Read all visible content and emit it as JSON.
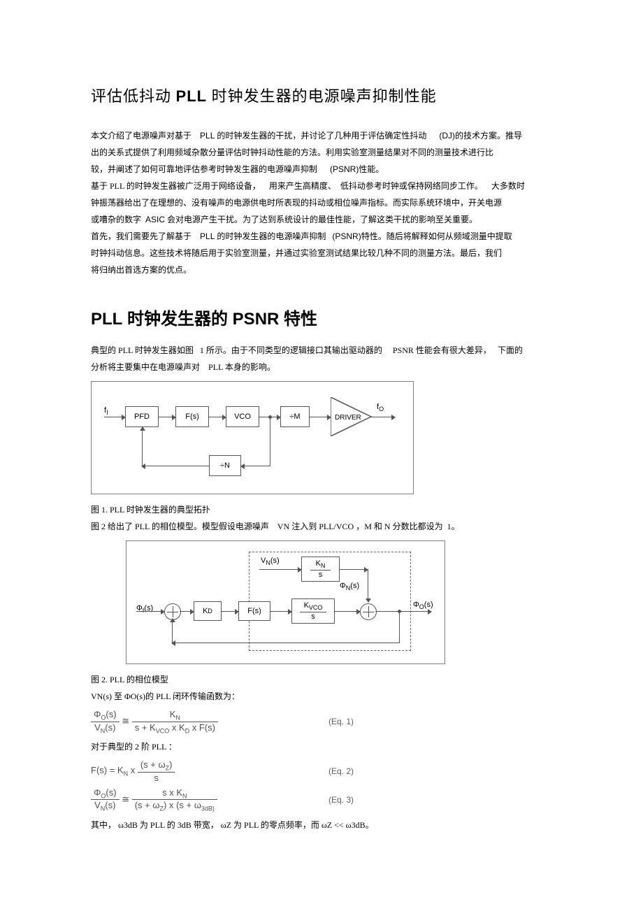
{
  "title": {
    "pre": "评估低抖动  ",
    "pll": "PLL",
    "post": " 时钟发生器的电源噪声抑制性能"
  },
  "intro": {
    "p1a": "本文介绍了电源噪声对基于",
    "p1b": "PLL",
    "p1c": "的时钟发生器的干扰，并讨论了几种用于评估确定性抖动",
    "p1d": "(DJ)",
    "p1e": "的技术方案。推导",
    "p2": "出的关系式提供了利用频域杂散分量评估时钟抖动性能的方法。利用实验室测量结果对不同的测量技术进行比",
    "p3a": "较，并阐述了如何可靠地评估参考时钟发生器的电源噪声抑制",
    "p3b": "(PSNR)",
    "p3c": "性能。",
    "p4a": "基于 PLL 的时钟发生器被广泛用于网络设备，",
    "p4b": "用来产生高精度、",
    "p4c": "低抖动参考时钟或保持网络同步工作。",
    "p4d": "大多数时",
    "p5": "钟振荡器给出了在理想的、没有噪声的电源供电时所表现的抖动或相位噪声指标。而实际系统环境中，开关电源",
    "p6a": "或嘈杂的数字",
    "p6b": "ASIC",
    "p6c": "会对电源产生干扰。为了达到系统设计的最佳性能，了解这类干扰的影响至关重要。",
    "p7a": "首先，我们需要先了解基于",
    "p7b": "PLL",
    "p7c": "的时钟发生器的电源噪声抑制",
    "p7d": "(PSNR)",
    "p7e": "特性。随后将解释如何从频域测量中提取",
    "p8": "时钟抖动信息。这些技术将随后用于实验室测量，并通过实验室测试结果比较几种不同的测量方法。最后，我们",
    "p9": "将归纳出首选方案的优点。"
  },
  "section1": {
    "h_a": "PLL",
    "h_b": " 时钟发生器的  ",
    "h_c": "PSNR",
    "h_d": " 特性",
    "p1a": "典型的 PLL 时钟发生器如图",
    "p1b": "1 所示。由于不同类型的逻辑接口其输出驱动器的",
    "p1c": "PSNR 性能会有很大差异，",
    "p1d": "下面的",
    "p2a": "分析将主要集中在电源噪声对",
    "p2b": "PLL 本身的影响。"
  },
  "fig1": {
    "f_in": "f",
    "f_in_sub": "I",
    "pfd": "PFD",
    "fs": "F(s)",
    "vco": "VCO",
    "divM": "÷M",
    "driver": "DRIVER",
    "f_out": "f",
    "f_out_sub": "O",
    "divN": "÷N",
    "border_color": "#808080",
    "line_color": "#555555"
  },
  "caption1": "图 1. PLL 时钟发生器的典型拓扑",
  "caption2a": "图 2 给出了 PLL 的相位模型。模型假设电源噪声",
  "caption2b": "VN 注入到 PLL/VCO ，M 和 N 分数比都设为",
  "caption2c": "1。",
  "fig2": {
    "vn": "V",
    "vn_sub": "N",
    "vn_sfx": "(s)",
    "kn": "K",
    "kn_sub": "N",
    "kn_over_s": "s",
    "phi_n": "Φ",
    "phi_n_sub": "N",
    "phi_n_sfx": "(s)",
    "phi_i": "Φ",
    "phi_i_sub": "I",
    "phi_i_sfx": "(s)",
    "kd": "K",
    "kd_sub": "D",
    "fs": "F(s)",
    "kvco": "K",
    "kvco_sub": "VCO",
    "kvco_over_s": "s",
    "phi_o": "Φ",
    "phi_o_sub": "O",
    "phi_o_sfx": "(s)"
  },
  "caption3": "图 2. PLL 的相位模型",
  "tf_line": "VN(s) 至 ΦO(s)的 PLL 闭环传输函数为：",
  "eq1": {
    "lhs_num": "Φ<sub>O</sub>(s)",
    "lhs_den": "V<sub>N</sub>(s)",
    "approx": "≅",
    "rhs_num": "K<sub>N</sub>",
    "rhs_den": "s + K<sub>VCO</sub> x K<sub>D</sub> x F(s)",
    "no": "(Eq. 1)"
  },
  "mid_line": "对于典型的   2 阶 PLL ：",
  "eq2": {
    "lhs": "F(s) = K<sub>N</sub> x ",
    "rhs_num": "(s + ω<sub>Z</sub>)",
    "rhs_den": "s",
    "no": "(Eq. 2)"
  },
  "eq3": {
    "lhs_num": "Φ<sub>O</sub>(s)",
    "lhs_den": "V<sub>N</sub>(s)",
    "approx": "≅",
    "rhs_num": "s x K<sub>N</sub>",
    "rhs_den": "(s + ω<sub>Z</sub>) x (s + ω<sub>3dB)</sub>",
    "no": "(Eq. 3)"
  },
  "last_line": "其中， ω3dB 为 PLL 的 3dB 带宽， ωZ 为 PLL 的零点频率，而   ωZ <<  ω3dB。"
}
